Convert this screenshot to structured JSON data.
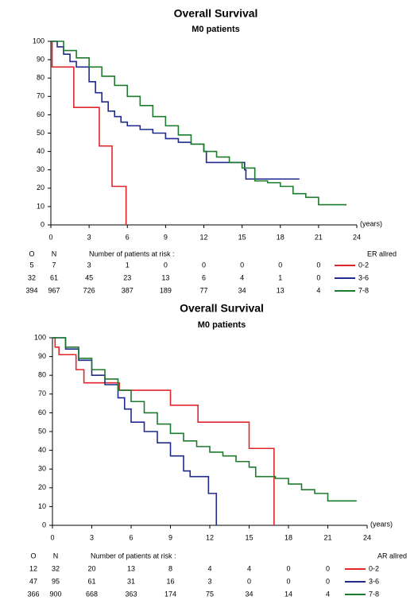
{
  "chart_data": [
    {
      "type": "line",
      "title": "Overall Survival",
      "subtitle": "M0 patients",
      "x_label": "(years)",
      "xlim": [
        0,
        24
      ],
      "xticks": [
        0,
        3,
        6,
        9,
        12,
        15,
        18,
        21,
        24
      ],
      "ylim": [
        0,
        100
      ],
      "yticks": [
        0,
        10,
        20,
        30,
        40,
        50,
        60,
        70,
        80,
        90,
        100
      ],
      "legend_title": "ER allred",
      "series": [
        {
          "name": "0-2",
          "color": "#e0262b",
          "x": [
            0,
            0.1,
            1.8,
            3.8,
            4.8,
            5.9
          ],
          "values": [
            100,
            86,
            64,
            43,
            21,
            0
          ]
        },
        {
          "name": "3-6",
          "color": "#1f2a8c",
          "x": [
            0,
            0.5,
            1,
            1.5,
            2,
            3,
            3.5,
            4,
            4.5,
            5,
            5.5,
            6,
            7,
            8,
            9,
            10,
            11,
            12,
            12.2,
            15.2,
            15.3,
            19.5
          ],
          "values": [
            100,
            97,
            93,
            89,
            86,
            78,
            72,
            67,
            62,
            59,
            56,
            54,
            52,
            50,
            47,
            45,
            44,
            40,
            34,
            30,
            25,
            25
          ]
        },
        {
          "name": "7-8",
          "color": "#1e7a2e",
          "x": [
            0,
            1,
            2,
            3,
            4,
            5,
            6,
            7,
            8,
            9,
            10,
            11,
            12,
            13,
            14,
            15,
            16,
            17,
            18,
            19,
            20,
            21,
            23.2
          ],
          "values": [
            100,
            95,
            91,
            86,
            81,
            76,
            70,
            65,
            59,
            54,
            49,
            44,
            40,
            37,
            34,
            31,
            24,
            23,
            21,
            17,
            15,
            11,
            11
          ]
        }
      ],
      "risk_table": {
        "header_o": "O",
        "header_n": "N",
        "caption": "Number of patients at risk :",
        "rows": [
          {
            "o": 5,
            "n": 7,
            "counts": [
              3,
              1,
              0,
              0,
              0,
              0,
              0
            ]
          },
          {
            "o": 32,
            "n": 61,
            "counts": [
              45,
              23,
              13,
              6,
              4,
              1,
              0
            ]
          },
          {
            "o": 394,
            "n": 967,
            "counts": [
              726,
              387,
              189,
              77,
              34,
              13,
              4
            ]
          }
        ]
      }
    },
    {
      "type": "line",
      "title": "Overall Survival",
      "subtitle": "M0 patients",
      "x_label": "(years)",
      "xlim": [
        0,
        24
      ],
      "xticks": [
        0,
        3,
        6,
        9,
        12,
        15,
        18,
        21,
        24
      ],
      "ylim": [
        0,
        100
      ],
      "yticks": [
        0,
        10,
        20,
        30,
        40,
        50,
        60,
        70,
        80,
        90,
        100
      ],
      "legend_title": "AR allred",
      "series": [
        {
          "name": "0-2",
          "color": "#e0262b",
          "x": [
            0,
            0.2,
            0.5,
            1.8,
            2.4,
            5.1,
            9.0,
            11.1,
            15.0,
            16.9
          ],
          "values": [
            100,
            95,
            91,
            83,
            76,
            72,
            64,
            55,
            41,
            0
          ]
        },
        {
          "name": "3-6",
          "color": "#1f2a8c",
          "x": [
            0,
            1,
            2,
            3,
            4,
            5,
            5.5,
            6,
            7,
            8,
            9,
            10,
            10.5,
            11.9,
            12.5
          ],
          "values": [
            100,
            94,
            88,
            80,
            75,
            68,
            62,
            55,
            50,
            44,
            37,
            29,
            26,
            17,
            0
          ]
        },
        {
          "name": "7-8",
          "color": "#1e7a2e",
          "x": [
            0,
            1,
            2,
            3,
            4,
            5,
            6,
            7,
            8,
            9,
            10,
            11,
            12,
            13,
            14,
            15,
            15.5,
            17,
            18,
            19,
            20,
            21,
            23.2
          ],
          "values": [
            100,
            95,
            89,
            83,
            78,
            72,
            66,
            60,
            54,
            49,
            45,
            42,
            39,
            37,
            34,
            31,
            26,
            25,
            22,
            19,
            17,
            13,
            13
          ]
        }
      ],
      "risk_table": {
        "header_o": "O",
        "header_n": "N",
        "caption": "Number of patients at risk :",
        "rows": [
          {
            "o": 12,
            "n": 32,
            "counts": [
              20,
              13,
              8,
              4,
              4,
              0,
              0
            ]
          },
          {
            "o": 47,
            "n": 95,
            "counts": [
              61,
              31,
              16,
              3,
              0,
              0,
              0
            ]
          },
          {
            "o": 366,
            "n": 900,
            "counts": [
              668,
              363,
              174,
              75,
              34,
              14,
              4
            ]
          }
        ]
      }
    }
  ]
}
